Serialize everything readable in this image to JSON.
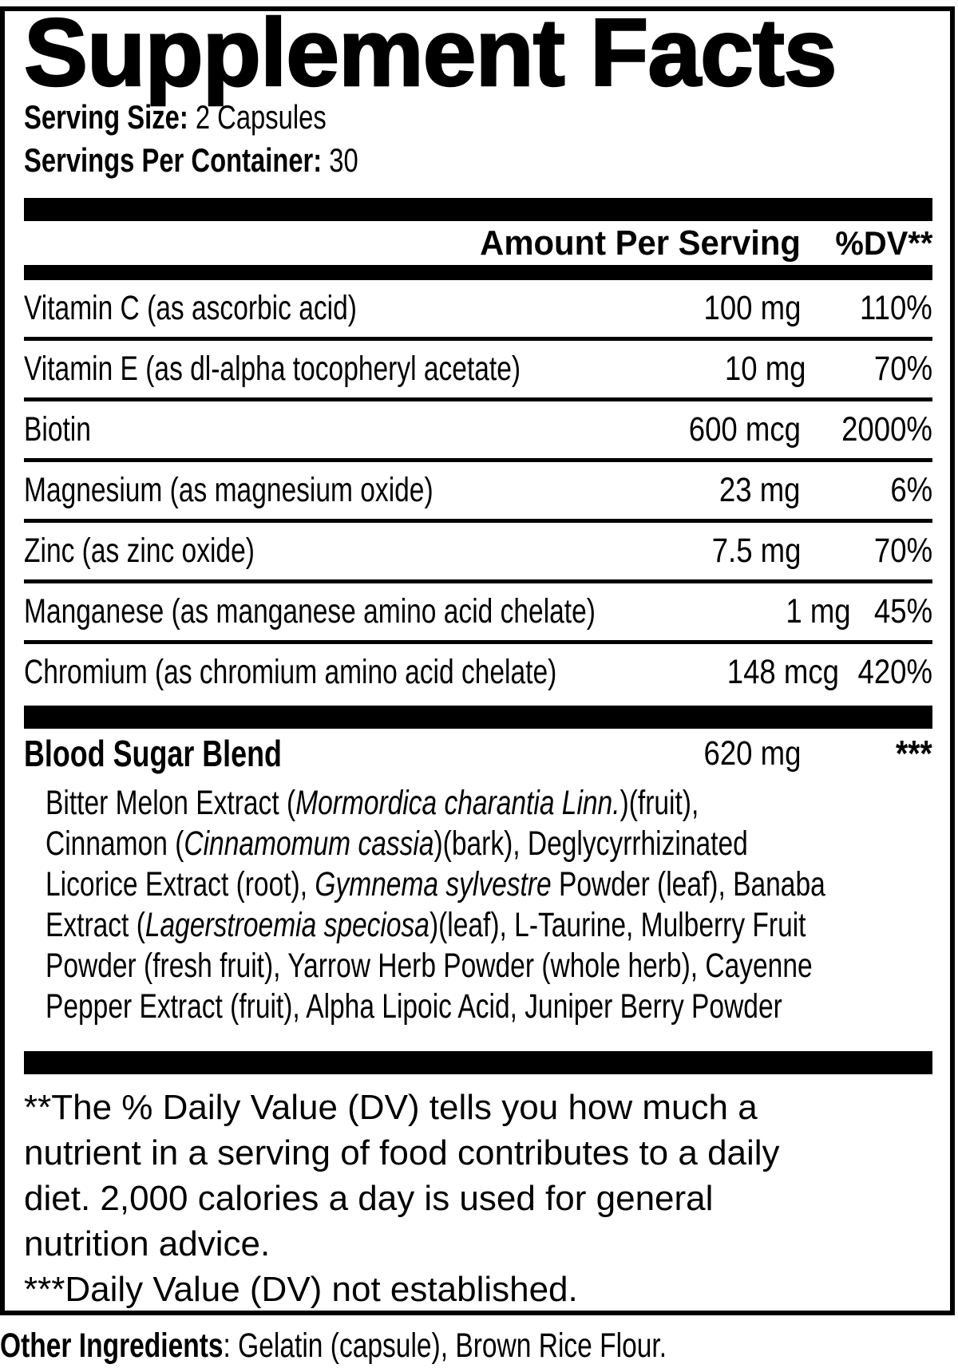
{
  "colors": {
    "ink": "#000000",
    "background": "#ffffff"
  },
  "title": "Supplement Facts",
  "serving": {
    "size_label": "Serving Size:",
    "size_value": "2 Capsules",
    "per_container_label": "Servings Per Container:",
    "per_container_value": "30"
  },
  "table": {
    "header": {
      "amount": "Amount Per Serving",
      "dv": "%DV**"
    },
    "rows": [
      {
        "name": "Vitamin C (as ascorbic acid)",
        "amount": "100 mg",
        "dv": "110%"
      },
      {
        "name": "Vitamin E (as dl-alpha tocopheryl acetate)",
        "amount": "10 mg",
        "dv": "70%"
      },
      {
        "name": "Biotin",
        "amount": "600 mcg",
        "dv": "2000%"
      },
      {
        "name": "Magnesium (as magnesium oxide)",
        "amount": "23 mg",
        "dv": "6%"
      },
      {
        "name": "Zinc (as zinc oxide)",
        "amount": "7.5 mg",
        "dv": "70%"
      },
      {
        "name": "Manganese (as manganese amino acid chelate)",
        "amount": "1 mg",
        "dv": "45%"
      },
      {
        "name": "Chromium (as chromium amino acid chelate)",
        "amount": "148 mcg",
        "dv": "420%"
      }
    ]
  },
  "blend": {
    "name": "Blood Sugar Blend",
    "amount": "620 mg",
    "dv": "***",
    "ingredient_lines": [
      [
        {
          "t": "Bitter Melon Extract ("
        },
        {
          "t": "Mormordica charantia Linn.",
          "i": 1
        },
        {
          "t": ")(fruit),"
        }
      ],
      [
        {
          "t": "Cinnamon ("
        },
        {
          "t": "Cinnamomum cassia",
          "i": 1
        },
        {
          "t": ")(bark), Deglycyrrhizinated"
        }
      ],
      [
        {
          "t": "Licorice Extract (root), "
        },
        {
          "t": "Gymnema sylvestre",
          "i": 1
        },
        {
          "t": " Powder (leaf), Banaba"
        }
      ],
      [
        {
          "t": "Extract ("
        },
        {
          "t": "Lagerstroemia speciosa",
          "i": 1
        },
        {
          "t": ")(leaf), L-Taurine, Mulberry Fruit"
        }
      ],
      [
        {
          "t": "Powder (fresh fruit), Yarrow Herb Powder (whole herb), Cayenne"
        }
      ],
      [
        {
          "t": "Pepper Extract (fruit), Alpha Lipoic Acid, Juniper Berry Powder"
        }
      ]
    ]
  },
  "footnotes": {
    "dv_note": "**The % Daily Value (DV) tells you how much a nutrient in a serving of food contributes to a daily diet. 2,000 calories a day is used for general nutrition advice.",
    "not_established": "***Daily Value (DV) not established."
  },
  "other_ingredients": {
    "label": "Other Ingredients",
    "value": ": Gelatin (capsule), Brown Rice Flour."
  }
}
